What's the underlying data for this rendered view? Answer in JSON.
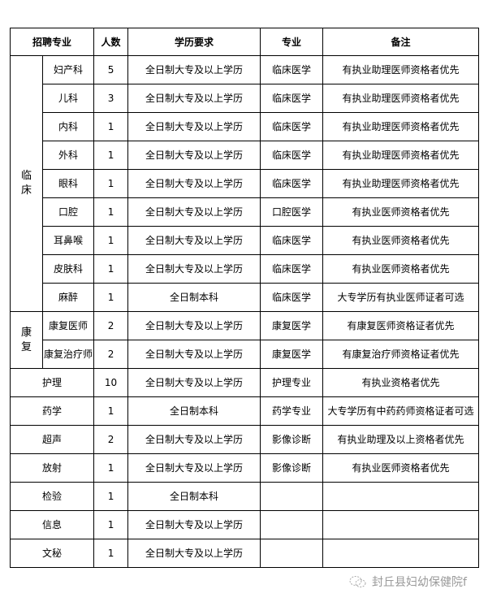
{
  "header": {
    "major": "招聘专业",
    "count": "人数",
    "education": "学历要求",
    "specialty": "专业",
    "remarks": "备注"
  },
  "groups": [
    {
      "label": "临\n床",
      "rows": [
        {
          "name": "妇产科",
          "count": "5",
          "education": "全日制大专及以上学历",
          "specialty": "临床医学",
          "remarks": "有执业助理医师资格者优先"
        },
        {
          "name": "儿科",
          "count": "3",
          "education": "全日制大专及以上学历",
          "specialty": "临床医学",
          "remarks": "有执业助理医师资格者优先"
        },
        {
          "name": "内科",
          "count": "1",
          "education": "全日制大专及以上学历",
          "specialty": "临床医学",
          "remarks": "有执业助理医师资格者优先"
        },
        {
          "name": "外科",
          "count": "1",
          "education": "全日制大专及以上学历",
          "specialty": "临床医学",
          "remarks": "有执业助理医师资格者优先"
        },
        {
          "name": "眼科",
          "count": "1",
          "education": "全日制大专及以上学历",
          "specialty": "临床医学",
          "remarks": "有执业助理医师资格者优先"
        },
        {
          "name": "口腔",
          "count": "1",
          "education": "全日制大专及以上学历",
          "specialty": "口腔医学",
          "remarks": "有执业医师资格者优先"
        },
        {
          "name": "耳鼻喉",
          "count": "1",
          "education": "全日制大专及以上学历",
          "specialty": "临床医学",
          "remarks": "有执业医师资格者优先"
        },
        {
          "name": "皮肤科",
          "count": "1",
          "education": "全日制大专及以上学历",
          "specialty": "临床医学",
          "remarks": "有执业医师资格者优先"
        },
        {
          "name": "麻醉",
          "count": "1",
          "education": "全日制本科",
          "specialty": "临床医学",
          "remarks": "大专学历有执业医师证者可选"
        }
      ]
    },
    {
      "label": "康\n复",
      "rows": [
        {
          "name": "康复医师",
          "count": "2",
          "education": "全日制大专及以上学历",
          "specialty": "康复医学",
          "remarks": "有康复医师资格证者优先"
        },
        {
          "name": "康复治疗师",
          "count": "2",
          "education": "全日制大专及以上学历",
          "specialty": "康复医学",
          "remarks": "有康复治疗师资格证者优先"
        }
      ]
    }
  ],
  "rows": [
    {
      "name": "护理",
      "count": "10",
      "education": "全日制大专及以上学历",
      "specialty": "护理专业",
      "remarks": "有执业资格者优先"
    },
    {
      "name": "药学",
      "count": "1",
      "education": "全日制本科",
      "specialty": "药学专业",
      "remarks": "大专学历有中药药师资格证者可选"
    },
    {
      "name": "超声",
      "count": "2",
      "education": "全日制大专及以上学历",
      "specialty": "影像诊断",
      "remarks": "有执业助理及以上资格者优先"
    },
    {
      "name": "放射",
      "count": "1",
      "education": "全日制大专及以上学历",
      "specialty": "影像诊断",
      "remarks": "有执业医师资格者优先"
    },
    {
      "name": "检验",
      "count": "1",
      "education": "全日制本科",
      "specialty": "",
      "remarks": ""
    },
    {
      "name": "信息",
      "count": "1",
      "education": "全日制大专及以上学历",
      "specialty": "",
      "remarks": ""
    },
    {
      "name": "文秘",
      "count": "1",
      "education": "全日制大专及以上学历",
      "specialty": "",
      "remarks": ""
    }
  ],
  "watermark": {
    "text": "封丘县妇幼保健院f",
    "icon": "wechat-icon"
  }
}
